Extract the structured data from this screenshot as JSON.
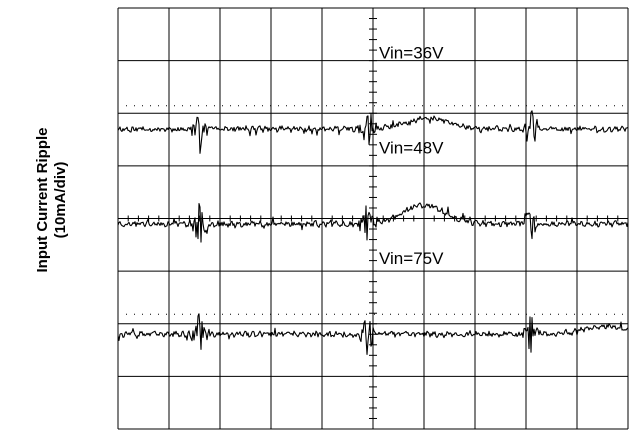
{
  "chart_data": {
    "type": "line",
    "title": "",
    "ylabel_line1": "Input Current Ripple",
    "ylabel_line2": "(10mA/div)",
    "xlabel": "",
    "grid": true,
    "grid_divisions": {
      "x": 10,
      "y": 8
    },
    "xlim": [
      0,
      10
    ],
    "ylim": [
      -4,
      4
    ],
    "colors": {
      "trace": "#000000",
      "grid": "#000000",
      "background": "#ffffff"
    },
    "series": [
      {
        "name": "Vin=36V",
        "label": "Vin=36V",
        "baseline_div": 1.7,
        "spikes_div": [
          1.6,
          4.9,
          8.1
        ],
        "hump": {
          "at_div": 6.1,
          "height_div": 0.2
        },
        "seed": 11
      },
      {
        "name": "Vin=48V",
        "label": "Vin=48V",
        "baseline_div": -0.1,
        "spikes_div": [
          1.6,
          4.9,
          8.1
        ],
        "hump": {
          "at_div": 6.0,
          "height_div": 0.35
        },
        "seed": 23
      },
      {
        "name": "Vin=75V",
        "label": "Vin=75V",
        "baseline_div": -2.2,
        "spikes_div": [
          1.6,
          4.9,
          8.1
        ],
        "hump": {
          "at_div": 9.5,
          "height_div": 0.15
        },
        "seed": 37
      }
    ]
  }
}
